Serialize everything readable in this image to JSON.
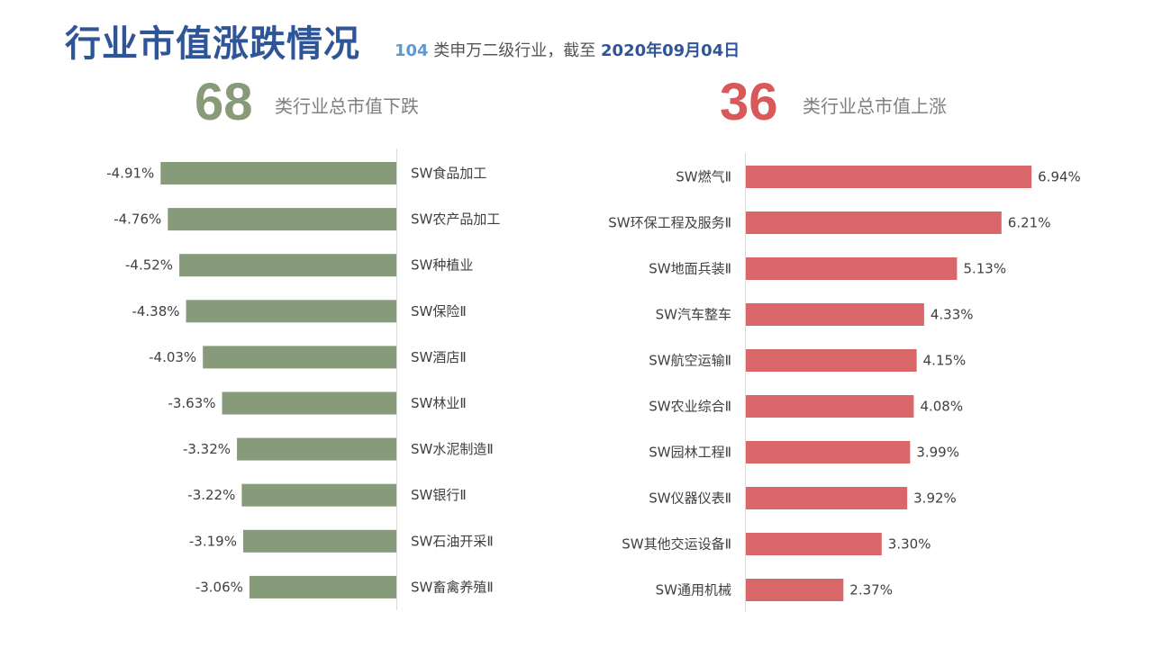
{
  "header": {
    "title": "行业市值涨跌情况",
    "sub_count": "104",
    "sub_text": " 类申万二级行业，截至 ",
    "sub_date": "2020年09月04日"
  },
  "summary": {
    "down_count": "68",
    "down_label": "类行业总市值下跌",
    "up_count": "36",
    "up_label": "类行业总市值上涨"
  },
  "colors": {
    "down_bar": "#879a7a",
    "up_bar": "#d9676a",
    "axis": "#d9d9d9"
  },
  "chart_data": [
    {
      "type": "bar",
      "orientation": "horizontal",
      "categories": [
        "SW食品加工",
        "SW农产品加工",
        "SW种植业",
        "SW保险Ⅱ",
        "SW酒店Ⅱ",
        "SW林业Ⅱ",
        "SW水泥制造Ⅱ",
        "SW银行Ⅱ",
        "SW石油开采Ⅱ",
        "SW畜禽养殖Ⅱ"
      ],
      "values": [
        -4.91,
        -4.76,
        -4.52,
        -4.38,
        -4.03,
        -3.63,
        -3.32,
        -3.22,
        -3.19,
        -3.06
      ],
      "value_labels": [
        "-4.91%",
        "-4.76%",
        "-4.52%",
        "-4.38%",
        "-4.03%",
        "-3.63%",
        "-3.32%",
        "-3.22%",
        "-3.19%",
        "-3.06%"
      ],
      "unit": "%",
      "xlim": [
        -5.0,
        0
      ]
    },
    {
      "type": "bar",
      "orientation": "horizontal",
      "categories": [
        "SW燃气Ⅱ",
        "SW环保工程及服务Ⅱ",
        "SW地面兵装Ⅱ",
        "SW汽车整车",
        "SW航空运输Ⅱ",
        "SW农业综合Ⅱ",
        "SW园林工程Ⅱ",
        "SW仪器仪表Ⅱ",
        "SW其他交运设备Ⅱ",
        "SW通用机械"
      ],
      "values": [
        6.94,
        6.21,
        5.13,
        4.33,
        4.15,
        4.08,
        3.99,
        3.92,
        3.3,
        2.37
      ],
      "value_labels": [
        "6.94%",
        "6.21%",
        "5.13%",
        "4.33%",
        "4.15%",
        "4.08%",
        "3.99%",
        "3.92%",
        "3.30%",
        "2.37%"
      ],
      "unit": "%",
      "xlim": [
        0,
        7.0
      ]
    }
  ]
}
